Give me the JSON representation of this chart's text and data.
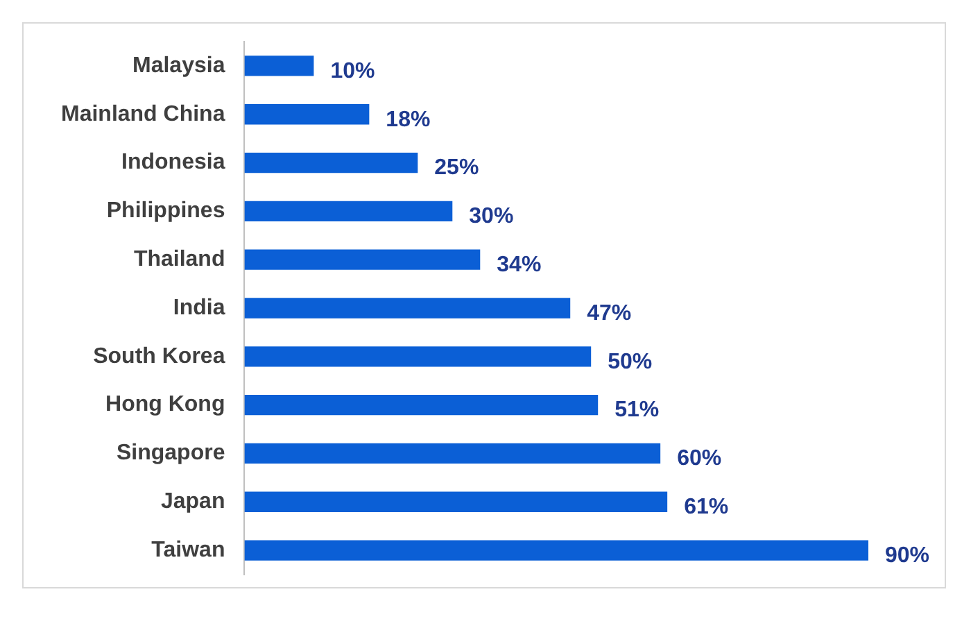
{
  "chart_data": {
    "type": "bar",
    "orientation": "horizontal",
    "categories": [
      "Malaysia",
      "Mainland China",
      "Indonesia",
      "Philippines",
      "Thailand",
      "India",
      "South Korea",
      "Hong Kong",
      "Singapore",
      "Japan",
      "Taiwan"
    ],
    "values": [
      10,
      18,
      25,
      30,
      34,
      47,
      50,
      51,
      60,
      61,
      90
    ],
    "value_labels": [
      "10%",
      "18%",
      "25%",
      "30%",
      "34%",
      "47%",
      "50%",
      "51%",
      "60%",
      "61%",
      "90%"
    ],
    "color": "#0b5fd6",
    "grid": false,
    "legend": false,
    "tick_labels": "y"
  }
}
